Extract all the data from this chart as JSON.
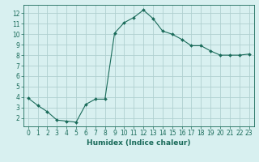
{
  "x": [
    0,
    1,
    2,
    3,
    4,
    5,
    6,
    7,
    8,
    9,
    10,
    11,
    12,
    13,
    14,
    15,
    16,
    17,
    18,
    19,
    20,
    21,
    22,
    23
  ],
  "y": [
    3.9,
    3.2,
    2.6,
    1.8,
    1.7,
    1.6,
    3.3,
    3.8,
    3.8,
    10.1,
    11.1,
    11.6,
    12.3,
    11.5,
    10.3,
    10.0,
    9.5,
    8.9,
    8.9,
    8.4,
    8.0,
    8.0,
    8.0,
    8.1
  ],
  "line_color": "#1a6b5a",
  "marker": "D",
  "marker_size": 2.0,
  "bg_color": "#d8f0f0",
  "grid_color": "#b0d0d0",
  "xlabel": "Humidex (Indice chaleur)",
  "xlim": [
    -0.5,
    23.5
  ],
  "ylim": [
    1.2,
    12.8
  ],
  "yticks": [
    2,
    3,
    4,
    5,
    6,
    7,
    8,
    9,
    10,
    11,
    12
  ],
  "xticks": [
    0,
    1,
    2,
    3,
    4,
    5,
    6,
    7,
    8,
    9,
    10,
    11,
    12,
    13,
    14,
    15,
    16,
    17,
    18,
    19,
    20,
    21,
    22,
    23
  ],
  "tick_color": "#1a6b5a",
  "label_color": "#1a6b5a",
  "font_size": 5.5,
  "xlabel_fontsize": 6.5
}
